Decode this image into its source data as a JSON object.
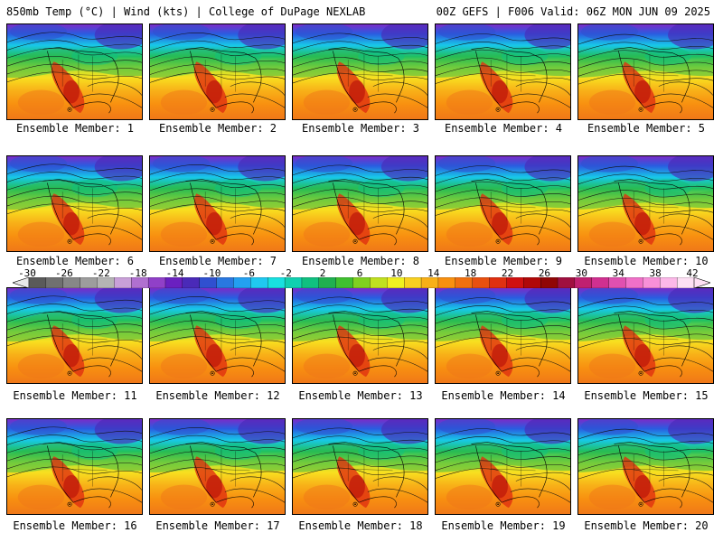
{
  "header": {
    "left": "850mb Temp (°C) | Wind (kts) | College of DuPage NEXLAB",
    "right": "00Z GEFS | F006 Valid: 06Z MON JUN 09 2025"
  },
  "member_prefix": "Ensemble Member: ",
  "members": [
    "1",
    "2",
    "3",
    "4",
    "5",
    "6",
    "7",
    "8",
    "9",
    "10",
    "11",
    "12",
    "13",
    "14",
    "15",
    "16",
    "17",
    "18",
    "19",
    "20"
  ],
  "colorbar": {
    "labels": [
      "-30",
      "-26",
      "-22",
      "-18",
      "-14",
      "-10",
      "-6",
      "-2",
      "2",
      "6",
      "10",
      "14",
      "18",
      "22",
      "26",
      "30",
      "34",
      "38",
      "42"
    ],
    "colors": [
      "#5a5a5a",
      "#707070",
      "#878787",
      "#9d9d9d",
      "#b4b4b4",
      "#c9a0d8",
      "#b070d0",
      "#9040c8",
      "#6a20c0",
      "#4a2ab8",
      "#3050d0",
      "#2a78e0",
      "#24a0f0",
      "#20c8f0",
      "#18e0e0",
      "#10d0b0",
      "#10c080",
      "#20b050",
      "#40c030",
      "#80d020",
      "#c0e020",
      "#f0f020",
      "#f8d020",
      "#f8b018",
      "#f89010",
      "#f07010",
      "#e85010",
      "#e03010",
      "#d01010",
      "#b00808",
      "#900606",
      "#a01040",
      "#c02070",
      "#d03090",
      "#e050b0",
      "#f070c8",
      "#f890d8",
      "#fcb8e8",
      "#fee0f4"
    ]
  }
}
